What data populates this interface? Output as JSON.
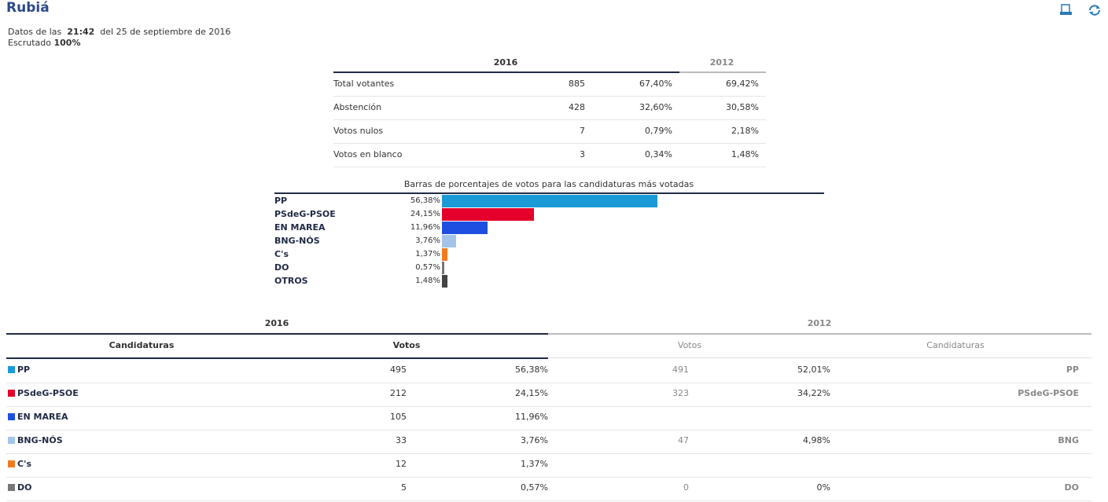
{
  "header": {
    "title": "Rubiá",
    "data_prefix": "Datos de las",
    "time": "21:42",
    "date": "del 25 de septiembre de 2016",
    "scrutiny_label": "Escrutado",
    "scrutiny_value": "100%"
  },
  "summary_table": {
    "columns": [
      "2016",
      "2012"
    ],
    "rows": [
      [
        "Total votantes",
        "885",
        "67,40%",
        "69,42%"
      ],
      [
        "Abstención",
        "428",
        "32,60%",
        "30,58%"
      ],
      [
        "Votos nulos",
        "7",
        "0,79%",
        "2,18%"
      ],
      [
        "Votos en blanco",
        "3",
        "0,34%",
        "1,48%"
      ]
    ]
  },
  "chart_data": {
    "type": "hbar",
    "title": "Barras de porcentajes de votos para las candidaturas más votadas",
    "categories": [
      "PP",
      "PSdeG-PSOE",
      "EN MAREA",
      "BNG-NÓS",
      "C's",
      "DO",
      "OTROS"
    ],
    "values": [
      56.38,
      24.15,
      11.96,
      3.76,
      1.37,
      0.57,
      1.48
    ],
    "value_labels": [
      "56,38%",
      "24,15%",
      "11,96%",
      "3,76%",
      "1,37%",
      "0,57%",
      "1,48%"
    ],
    "colors": [
      "#1a9ad6",
      "#e4002b",
      "#1f4fe0",
      "#a3c4e8",
      "#f47a20",
      "#777777",
      "#444444"
    ],
    "xlim": [
      0,
      100
    ]
  },
  "results_table": {
    "years": [
      "2016",
      "2012"
    ],
    "columns": [
      "Candidaturas",
      "Votos",
      "Votos",
      "Candidaturas"
    ],
    "rows": [
      [
        "PP",
        "495",
        "56,38%",
        "491",
        "52,01%",
        "PP"
      ],
      [
        "PSdeG-PSOE",
        "212",
        "24,15%",
        "323",
        "34,22%",
        "PSdeG-PSOE"
      ],
      [
        "EN MAREA",
        "105",
        "11,96%",
        null,
        null,
        null
      ],
      [
        "BNG-NÓS",
        "33",
        "3,76%",
        "47",
        "4,98%",
        "BNG"
      ],
      [
        "C's",
        "12",
        "1,37%",
        null,
        null,
        null
      ],
      [
        "DO",
        "5",
        "0,57%",
        "0",
        "0%",
        "DO"
      ]
    ]
  }
}
